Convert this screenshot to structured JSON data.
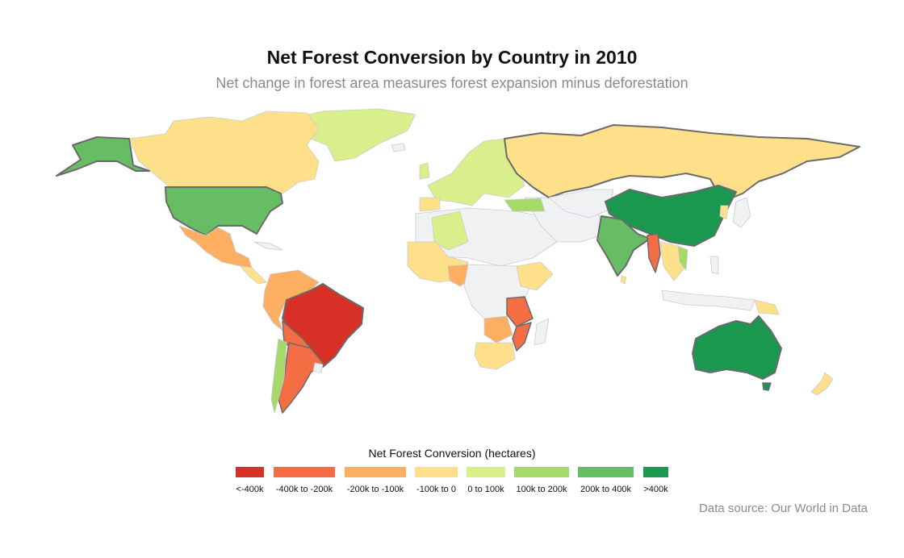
{
  "title": "Net Forest Conversion by Country in 2010",
  "subtitle": "Net change in forest area measures forest expansion minus deforestation",
  "legend": {
    "title": "Net Forest Conversion (hectares)",
    "bins": [
      {
        "label": "<-400k",
        "color": "#d73027"
      },
      {
        "label": "-400k to -200k",
        "color": "#f46d43"
      },
      {
        "label": "-200k to -100k",
        "color": "#fdae61"
      },
      {
        "label": "-100k to 0",
        "color": "#fee08b"
      },
      {
        "label": "0 to 100k",
        "color": "#d9ef8b"
      },
      {
        "label": "100k to 200k",
        "color": "#a6d96a"
      },
      {
        "label": "200k to 400k",
        "color": "#66bd63"
      },
      {
        "label": ">400k",
        "color": "#1a9850"
      }
    ]
  },
  "source": "Data source: Our World in Data",
  "colors": {
    "no_data": "#f0f1f2",
    "border": "#c8cdd0",
    "highlight_border": "#6b6b6b"
  }
}
